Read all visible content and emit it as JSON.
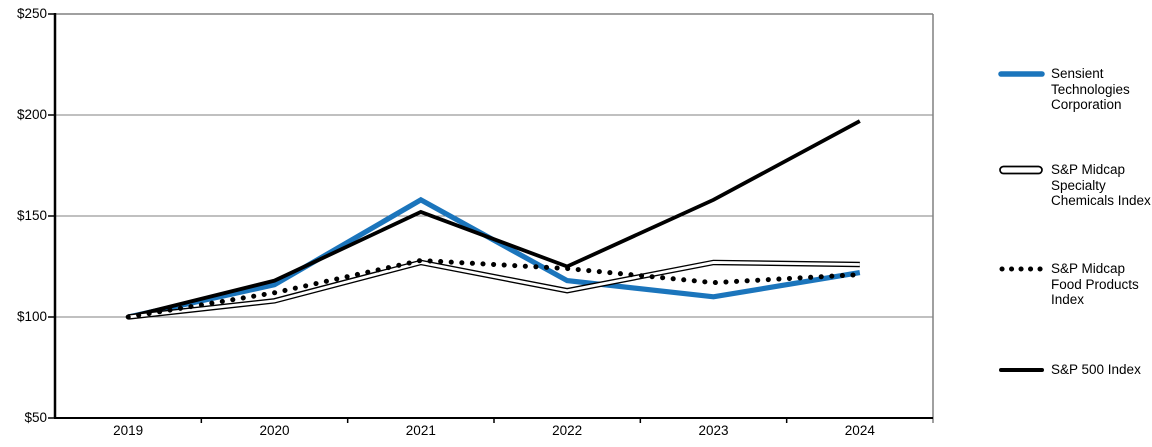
{
  "chart_data": {
    "type": "line",
    "title": "",
    "xlabel": "",
    "ylabel": "",
    "categories": [
      "2019",
      "2020",
      "2021",
      "2022",
      "2023",
      "2024"
    ],
    "y_ticks": [
      "$50",
      "$100",
      "$150",
      "$200",
      "$250"
    ],
    "y_min": 50,
    "y_max": 250,
    "y_step": 50,
    "grid": true,
    "legend_position": "right",
    "colors": {
      "accent_blue": "#1b75bc",
      "gridline_gray": "#808080",
      "axis_black": "#000000"
    },
    "series": [
      {
        "name": "Sensient Technologies Corporation",
        "style": "solid-thick",
        "color": "#1b75bc",
        "values": [
          100,
          116,
          158,
          118,
          110,
          122
        ]
      },
      {
        "name": "S&P Midcap Specialty Chemicals Index",
        "style": "double",
        "color": "#000000",
        "values": [
          100,
          108,
          127,
          113,
          127,
          126
        ]
      },
      {
        "name": "S&P Midcap Food Products Index",
        "style": "dotted",
        "color": "#000000",
        "values": [
          100,
          112,
          128,
          124,
          117,
          121
        ]
      },
      {
        "name": "S&P 500 Index",
        "style": "solid",
        "color": "#000000",
        "values": [
          100,
          118,
          152,
          125,
          158,
          197
        ]
      }
    ]
  }
}
